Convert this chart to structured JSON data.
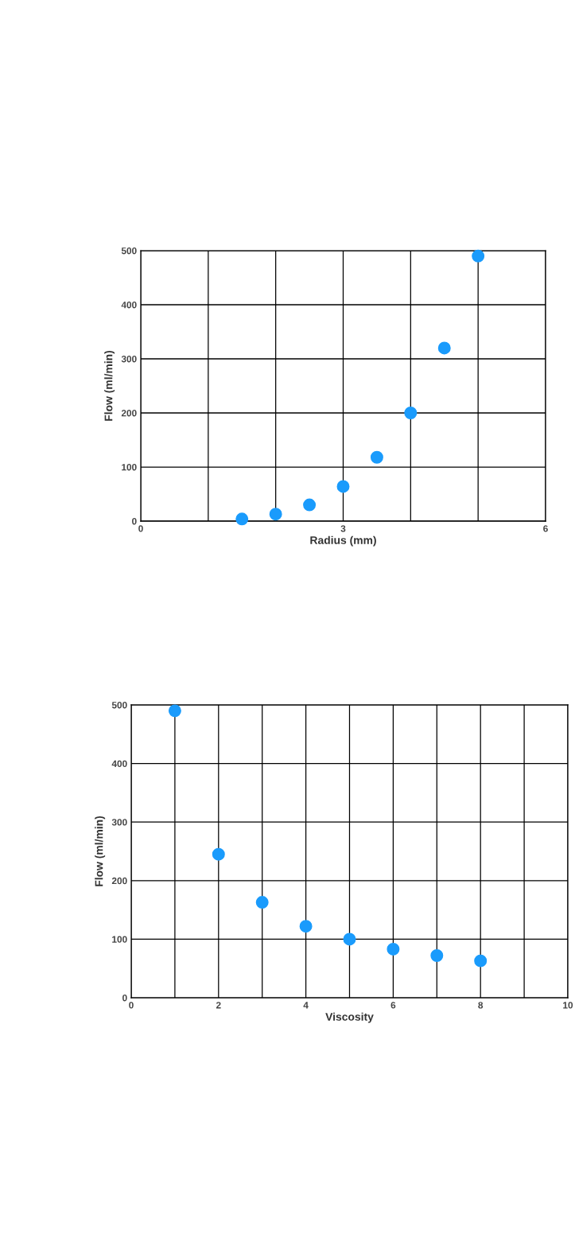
{
  "chart_data": [
    {
      "type": "scatter",
      "xlabel": "Radius (mm)",
      "ylabel": "Flow (ml/min)",
      "x": [
        1.5,
        2,
        2.5,
        3,
        3.5,
        4,
        4.5,
        5
      ],
      "series": [
        {
          "color": "#1a9bfc",
          "values": [
            4,
            13,
            30,
            64,
            118,
            200,
            320,
            490
          ]
        }
      ],
      "xlim": [
        0,
        6
      ],
      "xticks": [
        0,
        {
          "value": 1,
          "label": null
        },
        {
          "value": 2,
          "label": null
        },
        3,
        {
          "value": 4,
          "label": null
        },
        {
          "value": 5,
          "label": null
        },
        6
      ],
      "ylim": [
        0,
        500
      ],
      "yticks": [
        0,
        100,
        200,
        300,
        400,
        500
      ],
      "grid": true,
      "marker": "circle"
    },
    {
      "type": "scatter",
      "xlabel": "Viscosity",
      "ylabel": "Flow (ml/min)",
      "x": [
        1,
        2,
        3,
        4,
        5,
        6,
        7,
        8
      ],
      "series": [
        {
          "color": "#1a9bfc",
          "values": [
            490,
            245,
            163,
            122,
            100,
            83,
            72,
            63
          ]
        }
      ],
      "xlim": [
        0,
        10
      ],
      "xticks": [
        0,
        {
          "value": 1,
          "label": null
        },
        2,
        {
          "value": 3,
          "label": null
        },
        4,
        {
          "value": 5,
          "label": null
        },
        6,
        {
          "value": 7,
          "label": null
        },
        8,
        {
          "value": 9,
          "label": null
        },
        10
      ],
      "ylim": [
        0,
        500
      ],
      "yticks": [
        0,
        100,
        200,
        300,
        400,
        500
      ],
      "grid": true,
      "marker": "circle"
    }
  ]
}
